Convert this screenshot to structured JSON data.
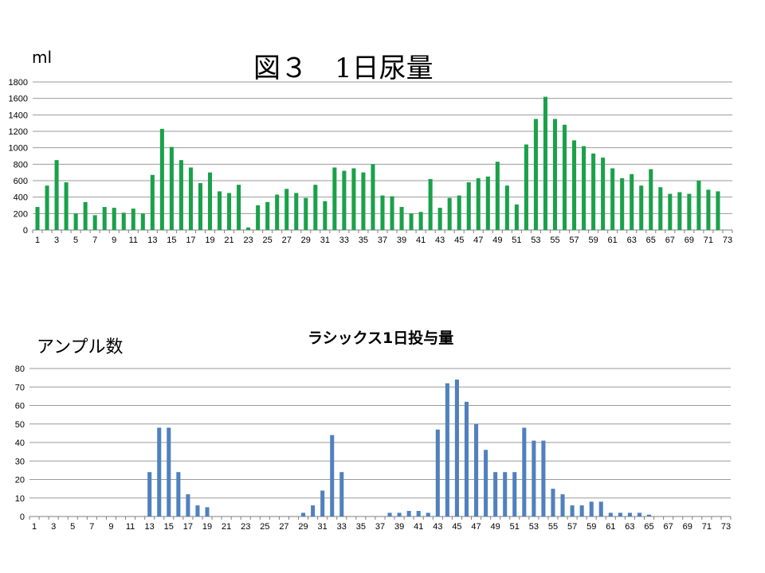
{
  "title": "図３　1日尿量",
  "chart_data": [
    {
      "type": "bar",
      "unit_label": "ml",
      "title": "",
      "color": "#1aa14a",
      "ylim": [
        0,
        1800
      ],
      "yticks": [
        0,
        200,
        400,
        600,
        800,
        1000,
        1200,
        1400,
        1600,
        1800
      ],
      "xtick_labels": [
        1,
        3,
        5,
        7,
        9,
        11,
        13,
        15,
        17,
        19,
        21,
        23,
        25,
        27,
        29,
        31,
        33,
        35,
        37,
        39,
        41,
        43,
        45,
        47,
        49,
        51,
        53,
        55,
        57,
        59,
        61,
        63,
        65,
        67,
        69,
        71,
        73
      ],
      "grid": true,
      "x": [
        1,
        2,
        3,
        4,
        5,
        6,
        7,
        8,
        9,
        10,
        11,
        12,
        13,
        14,
        15,
        16,
        17,
        18,
        19,
        20,
        21,
        22,
        23,
        24,
        25,
        26,
        27,
        28,
        29,
        30,
        31,
        32,
        33,
        34,
        35,
        36,
        37,
        38,
        39,
        40,
        41,
        42,
        43,
        44,
        45,
        46,
        47,
        48,
        49,
        50,
        51,
        52,
        53,
        54,
        55,
        56,
        57,
        58,
        59,
        60,
        61,
        62,
        63,
        64,
        65,
        66,
        67,
        68,
        69,
        70,
        71,
        72
      ],
      "values": [
        280,
        540,
        850,
        580,
        200,
        340,
        180,
        280,
        270,
        210,
        260,
        200,
        670,
        1230,
        1010,
        850,
        760,
        570,
        700,
        470,
        450,
        550,
        30,
        300,
        340,
        430,
        500,
        450,
        390,
        550,
        350,
        760,
        720,
        750,
        700,
        800,
        420,
        410,
        280,
        200,
        220,
        620,
        270,
        390,
        420,
        580,
        630,
        650,
        830,
        540,
        310,
        1040,
        1350,
        1620,
        1350,
        1280,
        1090,
        1020,
        930,
        880,
        750,
        630,
        680,
        540,
        740,
        520,
        440,
        460,
        440,
        600,
        490,
        470
      ]
    },
    {
      "type": "bar",
      "title": "ラシックス1日投与量",
      "unit_label": "アンプル数",
      "color": "#4f81bd",
      "ylim": [
        0,
        80
      ],
      "yticks": [
        0,
        10,
        20,
        30,
        40,
        50,
        60,
        70,
        80
      ],
      "xtick_labels": [
        1,
        3,
        5,
        7,
        9,
        11,
        13,
        15,
        17,
        19,
        21,
        23,
        25,
        27,
        29,
        31,
        33,
        35,
        37,
        39,
        41,
        43,
        45,
        47,
        49,
        51,
        53,
        55,
        57,
        59,
        61,
        63,
        65,
        67,
        69,
        71,
        73
      ],
      "grid": true,
      "x": [
        1,
        2,
        3,
        4,
        5,
        6,
        7,
        8,
        9,
        10,
        11,
        12,
        13,
        14,
        15,
        16,
        17,
        18,
        19,
        20,
        21,
        22,
        23,
        24,
        25,
        26,
        27,
        28,
        29,
        30,
        31,
        32,
        33,
        34,
        35,
        36,
        37,
        38,
        39,
        40,
        41,
        42,
        43,
        44,
        45,
        46,
        47,
        48,
        49,
        50,
        51,
        52,
        53,
        54,
        55,
        56,
        57,
        58,
        59,
        60,
        61,
        62,
        63,
        64,
        65,
        66,
        67,
        68,
        69,
        70,
        71,
        72,
        73
      ],
      "values": [
        0,
        0,
        0,
        0,
        0,
        0,
        0,
        0,
        0,
        0,
        0,
        0,
        24,
        48,
        48,
        24,
        12,
        6,
        5,
        0,
        0,
        0,
        0,
        0,
        0,
        0,
        0,
        0,
        2,
        6,
        14,
        44,
        24,
        0,
        0,
        0,
        0,
        2,
        2,
        3,
        3,
        2,
        47,
        72,
        74,
        62,
        50,
        36,
        24,
        24,
        24,
        48,
        41,
        41,
        15,
        12,
        6,
        6,
        8,
        8,
        2,
        2,
        2,
        2,
        1,
        0,
        0,
        0,
        0,
        0,
        0,
        0,
        0
      ]
    }
  ]
}
